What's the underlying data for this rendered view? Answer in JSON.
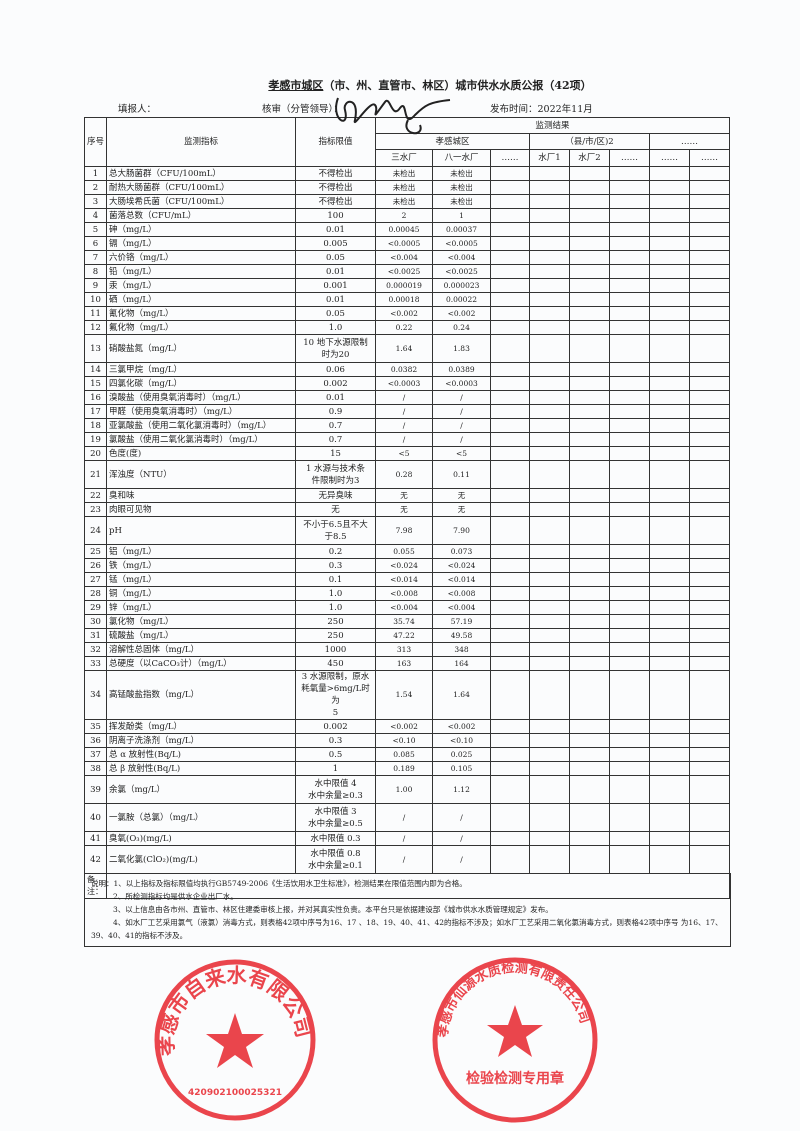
{
  "header": {
    "title_region": "孝感市城区",
    "title_rest": "（市、州、直管市、林区）城市供水水质公报（42项）",
    "filler_label": "填报人：",
    "reviewer_label": "核审（分管领导）：",
    "publish_time": "发布时间：2022年11月"
  },
  "table": {
    "col_seq": "序号",
    "col_indicator": "监测指标",
    "col_limit": "指标限值",
    "col_results": "监测结果",
    "group1": "孝感城区",
    "group2": "（县/市/区)2",
    "group3": "……",
    "sub": [
      "三水厂",
      "八一水厂",
      "……",
      "水厂1",
      "水厂2",
      "……",
      "……",
      "……"
    ],
    "rows": [
      {
        "no": "1",
        "name": "总大肠菌群（CFU/100mL）",
        "limit": "不得检出",
        "a": "未检出",
        "b": "未检出"
      },
      {
        "no": "2",
        "name": "耐热大肠菌群（CFU/100mL）",
        "limit": "不得检出",
        "a": "未检出",
        "b": "未检出"
      },
      {
        "no": "3",
        "name": "大肠埃希氏菌（CFU/100mL）",
        "limit": "不得检出",
        "a": "未检出",
        "b": "未检出"
      },
      {
        "no": "4",
        "name": "菌落总数（CFU/mL）",
        "limit": "100",
        "a": "2",
        "b": "1"
      },
      {
        "no": "5",
        "name": "砷（mg/L）",
        "limit": "0.01",
        "a": "0.00045",
        "b": "0.00037"
      },
      {
        "no": "6",
        "name": "镉（mg/L）",
        "limit": "0.005",
        "a": "<0.0005",
        "b": "<0.0005"
      },
      {
        "no": "7",
        "name": "六价铬（mg/L）",
        "limit": "0.05",
        "a": "<0.004",
        "b": "<0.004"
      },
      {
        "no": "8",
        "name": "铅（mg/L）",
        "limit": "0.01",
        "a": "<0.0025",
        "b": "<0.0025"
      },
      {
        "no": "9",
        "name": "汞（mg/L）",
        "limit": "0.001",
        "a": "0.000019",
        "b": "0.000023"
      },
      {
        "no": "10",
        "name": "硒（mg/L）",
        "limit": "0.01",
        "a": "0.00018",
        "b": "0.00022"
      },
      {
        "no": "11",
        "name": "氰化物（mg/L）",
        "limit": "0.05",
        "a": "<0.002",
        "b": "<0.002"
      },
      {
        "no": "12",
        "name": "氟化物（mg/L）",
        "limit": "1.0",
        "a": "0.22",
        "b": "0.24"
      },
      {
        "no": "13",
        "name": "硝酸盐氮（mg/L）",
        "limit": "10 地下水源限制\n时为20",
        "a": "1.64",
        "b": "1.83"
      },
      {
        "no": "14",
        "name": "三氯甲烷（mg/L）",
        "limit": "0.06",
        "a": "0.0382",
        "b": "0.0389"
      },
      {
        "no": "15",
        "name": "四氯化碳（mg/L）",
        "limit": "0.002",
        "a": "<0.0003",
        "b": "<0.0003"
      },
      {
        "no": "16",
        "name": "溴酸盐（使用臭氧消毒时）（mg/L）",
        "limit": "0.01",
        "a": "/",
        "b": "/"
      },
      {
        "no": "17",
        "name": "甲醛（使用臭氧消毒时）（mg/L）",
        "limit": "0.9",
        "a": "/",
        "b": "/"
      },
      {
        "no": "18",
        "name": "亚氯酸盐（使用二氧化氯消毒时）（mg/L）",
        "limit": "0.7",
        "a": "/",
        "b": "/"
      },
      {
        "no": "19",
        "name": "氯酸盐（使用二氧化氯消毒时）（mg/L）",
        "limit": "0.7",
        "a": "/",
        "b": "/"
      },
      {
        "no": "20",
        "name": "色度(度)",
        "limit": "15",
        "a": "<5",
        "b": "<5"
      },
      {
        "no": "21",
        "name": "浑浊度（NTU）",
        "limit": "1  水源与技术条\n件限制时为3",
        "a": "0.28",
        "b": "0.11"
      },
      {
        "no": "22",
        "name": "臭和味",
        "limit": "无异臭味",
        "a": "无",
        "b": "无"
      },
      {
        "no": "23",
        "name": "肉眼可见物",
        "limit": "无",
        "a": "无",
        "b": "无"
      },
      {
        "no": "24",
        "name": "pH",
        "limit": "不小于6.5且不大\n于8.5",
        "a": "7.98",
        "b": "7.90"
      },
      {
        "no": "25",
        "name": "铝（mg/L）",
        "limit": "0.2",
        "a": "0.055",
        "b": "0.073"
      },
      {
        "no": "26",
        "name": "铁（mg/L）",
        "limit": "0.3",
        "a": "<0.024",
        "b": "<0.024"
      },
      {
        "no": "27",
        "name": "锰（mg/L）",
        "limit": "0.1",
        "a": "<0.014",
        "b": "<0.014"
      },
      {
        "no": "28",
        "name": "铜（mg/L）",
        "limit": "1.0",
        "a": "<0.008",
        "b": "<0.008"
      },
      {
        "no": "29",
        "name": "锌（mg/L）",
        "limit": "1.0",
        "a": "<0.004",
        "b": "<0.004"
      },
      {
        "no": "30",
        "name": "氯化物（mg/L）",
        "limit": "250",
        "a": "35.74",
        "b": "57.19"
      },
      {
        "no": "31",
        "name": "硫酸盐（mg/L）",
        "limit": "250",
        "a": "47.22",
        "b": "49.58"
      },
      {
        "no": "32",
        "name": "溶解性总固体（mg/L）",
        "limit": "1000",
        "a": "313",
        "b": "348"
      },
      {
        "no": "33",
        "name": "总硬度（以CaCO₃计）（mg/L）",
        "limit": "450",
        "a": "163",
        "b": "164"
      },
      {
        "no": "34",
        "name": "高锰酸盐指数（mg/L）",
        "limit": "3 水源限制，原水\n耗氧量>6mg/L时为\n5",
        "a": "1.54",
        "b": "1.64"
      },
      {
        "no": "35",
        "name": "挥发酚类（mg/L）",
        "limit": "0.002",
        "a": "<0.002",
        "b": "<0.002"
      },
      {
        "no": "36",
        "name": "阴离子洗涤剂（mg/L）",
        "limit": "0.3",
        "a": "<0.10",
        "b": "<0.10"
      },
      {
        "no": "37",
        "name": "总 α 放射性(Bq/L)",
        "limit": "0.5",
        "a": "0.085",
        "b": "0.025"
      },
      {
        "no": "38",
        "name": "总 β 放射性(Bq/L)",
        "limit": "1",
        "a": "0.189",
        "b": "0.105"
      },
      {
        "no": "39",
        "name": "余氯（mg/L）",
        "limit": "水中限值 4\n水中余量≥0.3",
        "a": "1.00",
        "b": "1.12"
      },
      {
        "no": "40",
        "name": "一氯胺（总氯）（mg/L）",
        "limit": "水中限值 3\n水中余量≥0.5",
        "a": "/",
        "b": "/"
      },
      {
        "no": "41",
        "name": "臭氧(O₃)(mg/L)",
        "limit": "水中限值 0.3",
        "a": "/",
        "b": "/"
      },
      {
        "no": "42",
        "name": "二氧化氯(ClO₂)(mg/L)",
        "limit": "水中限值 0.8\n水中余量≥0.1",
        "a": "/",
        "b": "/"
      }
    ],
    "remarks_label": "备注："
  },
  "notes": [
    "说明：1、以上指标及指标限值均执行GB5749-2006《生活饮用水卫生标准》，检测结果在限值范围内即为合格。",
    "2、所检测指标均是供水企业出厂水。",
    "3、以上信息由各市州、直管市、林区住建委审核上报，并对其真实性负责。本平台只是依据建设部《城市供水水质管理规定》发布。",
    "4、如水厂工艺采用氯气（液氯）消毒方式，则表格42项中序号为16、17 、18、19、40、41、42的指标不涉及；如水厂工艺采用二氧化氯消毒方式，则表格42项中序号 为16、17、39、40、41的指标不涉及。"
  ],
  "stamps": {
    "top_text": "孝感市自来水有限公司",
    "top_number": "420902100025321",
    "bottom_text": "孝感市仙源水质检测有限责任公司",
    "bottom_sub": "检验检测专用章",
    "color": "#e8262e"
  }
}
